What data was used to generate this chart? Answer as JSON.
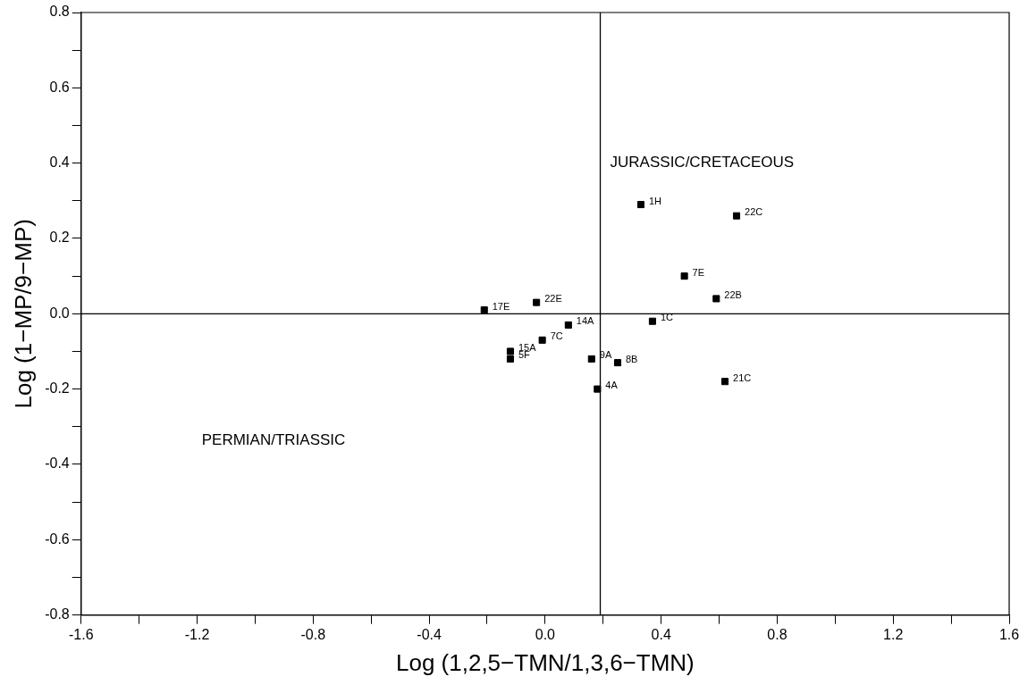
{
  "chart_data": {
    "type": "scatter",
    "xlabel": "Log (1,2,5−TMN/1,3,6−TMN)",
    "ylabel": "Log (1−MP/9−MP)",
    "series": [
      {
        "name": "1H",
        "color": "#000000",
        "x": [
          0.33
        ],
        "values": [
          0.29
        ]
      },
      {
        "name": "22C",
        "color": "#000000",
        "x": [
          0.66
        ],
        "values": [
          0.26
        ]
      },
      {
        "name": "7E",
        "color": "#000000",
        "x": [
          0.48
        ],
        "values": [
          0.1
        ]
      },
      {
        "name": "22B",
        "color": "#000000",
        "x": [
          0.59
        ],
        "values": [
          0.04
        ]
      },
      {
        "name": "17E",
        "color": "#000000",
        "x": [
          -0.21
        ],
        "values": [
          0.01
        ]
      },
      {
        "name": "22E",
        "color": "#000000",
        "x": [
          -0.03
        ],
        "values": [
          0.03
        ]
      },
      {
        "name": "14A",
        "color": "#000000",
        "x": [
          0.08
        ],
        "values": [
          -0.03
        ]
      },
      {
        "name": "1C",
        "color": "#000000",
        "x": [
          0.37
        ],
        "values": [
          -0.02
        ]
      },
      {
        "name": "7C",
        "color": "#000000",
        "x": [
          -0.01
        ],
        "values": [
          -0.07
        ]
      },
      {
        "name": "15A",
        "color": "#000000",
        "x": [
          -0.12
        ],
        "values": [
          -0.1
        ]
      },
      {
        "name": "5F",
        "color": "#000000",
        "x": [
          -0.12
        ],
        "values": [
          -0.12
        ]
      },
      {
        "name": "9A",
        "color": "#000000",
        "x": [
          0.16
        ],
        "values": [
          -0.12
        ]
      },
      {
        "name": "8B",
        "color": "#000000",
        "x": [
          0.25
        ],
        "values": [
          -0.13
        ]
      },
      {
        "name": "4A",
        "color": "#000000",
        "x": [
          0.18
        ],
        "values": [
          -0.2
        ]
      },
      {
        "name": "21C",
        "color": "#000000",
        "x": [
          0.62
        ],
        "values": [
          -0.18
        ]
      }
    ],
    "marker": "square",
    "grid": false,
    "legend": false,
    "xlim": [
      -1.6,
      1.6
    ],
    "xticks": [
      -1.6,
      {
        "value": -1.4,
        "label": null
      },
      -1.2,
      {
        "value": -1.0,
        "label": null
      },
      -0.8,
      {
        "value": -0.6,
        "label": null
      },
      -0.4,
      {
        "value": -0.2,
        "label": null
      },
      {
        "value": 0,
        "label": "0.0"
      },
      {
        "value": 0.2,
        "label": null
      },
      0.4,
      {
        "value": 0.6,
        "label": null
      },
      0.8,
      {
        "value": 1.0,
        "label": null
      },
      1.2,
      {
        "value": 1.4,
        "label": null
      },
      1.6
    ],
    "ylim": [
      -0.8,
      0.8
    ],
    "yticks": [
      -0.8,
      {
        "value": -0.7,
        "label": null
      },
      -0.6,
      {
        "value": -0.5,
        "label": null
      },
      -0.4,
      {
        "value": -0.3,
        "label": null
      },
      -0.2,
      {
        "value": -0.1,
        "label": null
      },
      {
        "value": 0,
        "label": "0.0"
      },
      {
        "value": 0.1,
        "label": null
      },
      0.2,
      {
        "value": 0.3,
        "label": null
      },
      0.4,
      {
        "value": 0.5,
        "label": null
      },
      0.6,
      {
        "value": 0.7,
        "label": null
      },
      0.8
    ],
    "ref_lines": [
      {
        "axis": "x",
        "value": 0.19,
        "color": "#000000"
      },
      {
        "axis": "y",
        "value": 0,
        "color": "#000000"
      }
    ],
    "annotations": [
      "JURASSIC/CRETACEOUS",
      "PERMIAN/TRIASSIC"
    ]
  }
}
